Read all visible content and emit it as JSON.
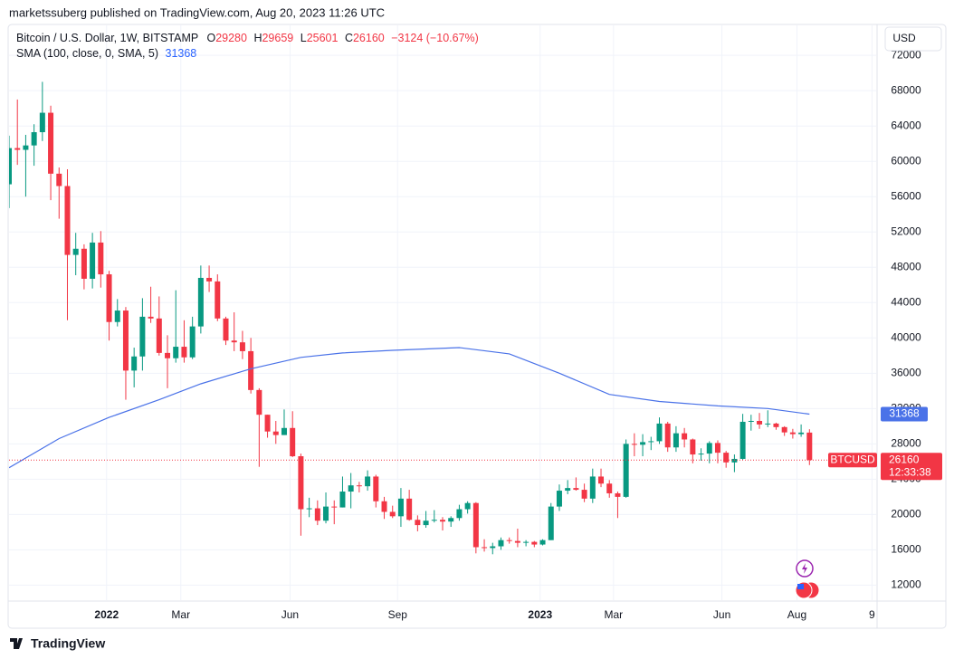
{
  "header": {
    "publisher": "marketssuberg published on TradingView.com, Aug 20, 2023 11:26 UTC",
    "currency_button": "USD",
    "footer_brand": "TradingView"
  },
  "chart_data": {
    "type": "candlestick",
    "title": "Bitcoin / U.S. Dollar, 1W, BITSTAMP",
    "ohlc_labels": [
      "O",
      "H",
      "L",
      "C"
    ],
    "change_label": "−3124 (−10.67%)",
    "up_color": "#089981",
    "down_color": "#f23645",
    "open": [
      57400,
      61500,
      61300,
      61800,
      63300,
      65500,
      58600,
      57200,
      49400,
      50100,
      46700,
      50800,
      47200,
      41800,
      43100,
      36300,
      37900,
      42400,
      42200,
      38300,
      37700,
      39000,
      37800,
      41300,
      46800,
      46400,
      42200,
      39700,
      39500,
      38500,
      34100,
      31300,
      29400,
      29000,
      29800,
      26600,
      20600,
      20700,
      19300,
      20900,
      20800,
      22600,
      23300,
      23200,
      24300,
      21500,
      20300,
      19800,
      21800,
      19400,
      18800,
      19300,
      19400,
      19200,
      19600,
      20600,
      21300,
      16300,
      16200,
      16400,
      17100,
      17000,
      16800,
      16900,
      16600,
      17100,
      20900,
      22700,
      23000,
      22800,
      21800,
      24300,
      23500,
      22400,
      22000,
      28000,
      27900,
      28200,
      28300,
      30300,
      27600,
      29200,
      28500,
      26800,
      26900,
      28100,
      27000,
      25900,
      26300,
      30500,
      30600,
      30200,
      30300,
      29900,
      29300,
      29100,
      29280
    ],
    "high": [
      62900,
      67000,
      63000,
      64200,
      69000,
      66300,
      59300,
      59100,
      51900,
      50600,
      51900,
      52100,
      47600,
      44400,
      43500,
      38900,
      44500,
      45800,
      44700,
      40300,
      45400,
      42000,
      42400,
      48200,
      48200,
      47200,
      42400,
      42900,
      40800,
      40000,
      34300,
      31300,
      30600,
      31900,
      31700,
      26900,
      21900,
      21600,
      22500,
      21600,
      24300,
      24700,
      23700,
      25000,
      24500,
      22000,
      21000,
      23000,
      22800,
      19900,
      20400,
      20500,
      19700,
      19800,
      21100,
      21500,
      21400,
      17200,
      16800,
      17400,
      17400,
      18400,
      17100,
      17000,
      17200,
      21300,
      23400,
      23900,
      24200,
      23500,
      25200,
      25200,
      23900,
      22600,
      28500,
      29200,
      29100,
      28800,
      31000,
      30500,
      30000,
      29800,
      28600,
      27500,
      28300,
      28400,
      27200,
      26800,
      31400,
      31300,
      31500,
      31800,
      30400,
      30000,
      29700,
      30200,
      29659
    ],
    "low": [
      54700,
      59600,
      56000,
      59500,
      62300,
      55600,
      53500,
      42000,
      47100,
      45500,
      45600,
      45700,
      39700,
      41300,
      33000,
      34400,
      36300,
      41700,
      38000,
      34300,
      37200,
      37200,
      37600,
      40500,
      45200,
      41900,
      39200,
      38500,
      37600,
      33700,
      25400,
      28700,
      28000,
      29000,
      26500,
      17600,
      19700,
      18800,
      19000,
      18900,
      20800,
      20700,
      22500,
      22700,
      20800,
      19500,
      19600,
      18600,
      19300,
      18100,
      18500,
      19100,
      18200,
      18600,
      19300,
      20100,
      15600,
      15800,
      15500,
      16000,
      16700,
      16300,
      16400,
      16300,
      16500,
      17100,
      20400,
      22300,
      22700,
      21400,
      21300,
      23100,
      21900,
      19600,
      21900,
      26600,
      26600,
      27300,
      28000,
      27100,
      27100,
      27600,
      25800,
      26100,
      25800,
      25800,
      25300,
      24800,
      26200,
      29500,
      29700,
      29900,
      29600,
      28900,
      28600,
      28800,
      25601
    ],
    "close": [
      61500,
      61300,
      61800,
      63300,
      65500,
      58600,
      57200,
      49400,
      50100,
      46700,
      50800,
      47200,
      41800,
      43100,
      36300,
      37900,
      42400,
      42200,
      38300,
      37700,
      39000,
      37800,
      41300,
      46800,
      46400,
      42200,
      39700,
      39500,
      38500,
      34100,
      31300,
      29400,
      29000,
      29800,
      26600,
      20600,
      20700,
      19300,
      20900,
      20800,
      22600,
      23300,
      23200,
      24300,
      21500,
      20300,
      19800,
      21800,
      19400,
      18800,
      19300,
      19400,
      19200,
      19600,
      20600,
      21300,
      16300,
      16200,
      16400,
      17100,
      17000,
      16800,
      16900,
      16600,
      17100,
      20900,
      22700,
      23000,
      22800,
      21800,
      24300,
      23500,
      22400,
      22000,
      28000,
      27900,
      28200,
      28300,
      30300,
      27600,
      29200,
      28500,
      26800,
      26900,
      28100,
      27000,
      25900,
      26300,
      30500,
      30600,
      30200,
      30300,
      29900,
      29300,
      29100,
      29280,
      26160
    ],
    "sma": {
      "name": "SMA (100, close, 0, SMA, 5)",
      "color": "#4a72e8",
      "x": [
        0,
        6,
        12,
        18,
        23,
        29,
        35,
        40,
        46,
        54,
        60,
        66,
        72,
        78,
        85,
        91,
        96
      ],
      "values": [
        25300,
        28600,
        31000,
        33000,
        34800,
        36500,
        37800,
        38300,
        38600,
        38900,
        38200,
        36000,
        33600,
        32800,
        32300,
        32000,
        31368
      ]
    },
    "symbol_label": "BTCUSD",
    "countdown_label": "12:33:38",
    "xlim": [
      0,
      104
    ],
    "xticks": [
      {
        "value": 11.7,
        "label": "2022"
      },
      {
        "value": 20.6,
        "label": "Mar"
      },
      {
        "value": 33.7,
        "label": "Jun"
      },
      {
        "value": 46.6,
        "label": "Sep"
      },
      {
        "value": 63.7,
        "label": "2023"
      },
      {
        "value": 72.5,
        "label": "Mar"
      },
      {
        "value": 85.5,
        "label": "Jun"
      },
      {
        "value": 94.5,
        "label": "Aug"
      },
      {
        "value": 103.5,
        "label": "9"
      }
    ],
    "ylim": [
      10300,
      75400
    ],
    "yticks": [
      12000,
      16000,
      20000,
      24000,
      28000,
      32000,
      36000,
      40000,
      44000,
      48000,
      52000,
      56000,
      60000,
      64000,
      68000,
      72000
    ],
    "grid": true
  }
}
